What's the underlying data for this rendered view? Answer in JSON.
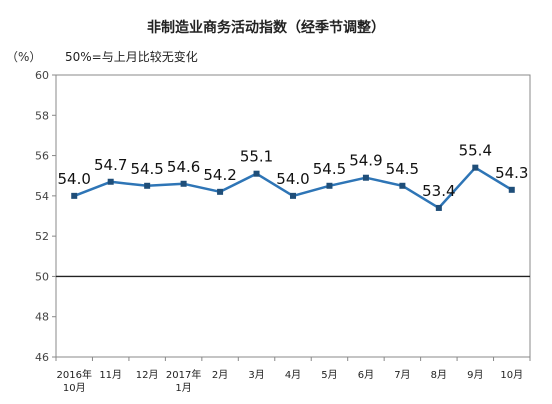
{
  "chart_data": {
    "type": "line",
    "title": "非制造业商务活动指数（经季节调整）",
    "unit_label": "（%）",
    "annotation": "50%=与上月比较无变化",
    "categories": [
      [
        "2016年",
        "10月"
      ],
      [
        "11月"
      ],
      [
        "12月"
      ],
      [
        "2017年",
        "1月"
      ],
      [
        "2月"
      ],
      [
        "3月"
      ],
      [
        "4月"
      ],
      [
        "5月"
      ],
      [
        "6月"
      ],
      [
        "7月"
      ],
      [
        "8月"
      ],
      [
        "9月"
      ],
      [
        "10月"
      ]
    ],
    "series": [
      {
        "values": [
          54.0,
          54.7,
          54.5,
          54.6,
          54.2,
          55.1,
          54.0,
          54.5,
          54.9,
          54.5,
          53.4,
          55.4,
          54.3
        ],
        "labels": [
          "54.0",
          "54.7",
          "54.5",
          "54.6",
          "54.2",
          "55.1",
          "54.0",
          "54.5",
          "54.9",
          "54.5",
          "53.4",
          "55.4",
          "54.3"
        ]
      }
    ],
    "ylim": [
      46,
      60
    ],
    "yticks": [
      "46",
      "48",
      "50",
      "52",
      "54",
      "56",
      "58",
      "60"
    ],
    "baseline": 50,
    "grid": false,
    "colors": {
      "line": "#2e75b6",
      "marker": "#1f4e79",
      "axis": "#888888",
      "baseline": "#222222"
    }
  }
}
